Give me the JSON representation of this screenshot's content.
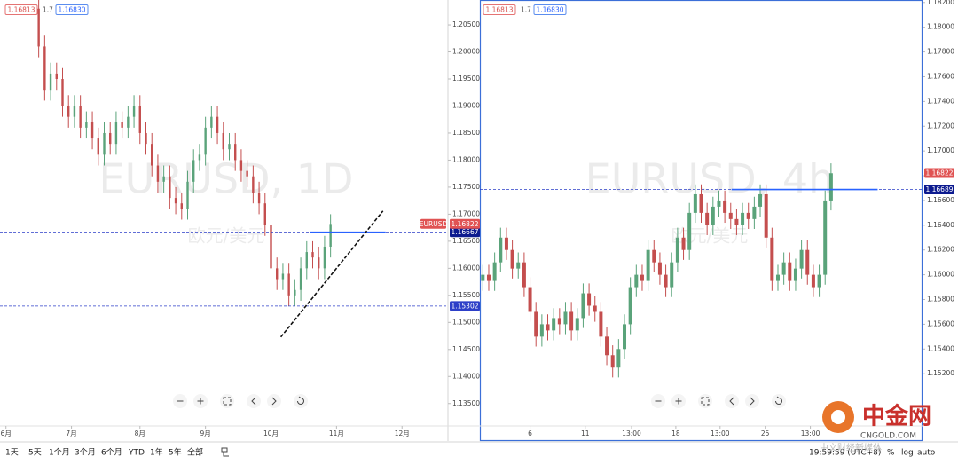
{
  "chart_data": [
    {
      "type": "candlestick",
      "watermark": "EURUSD, 1D",
      "watermark_subtitle": "欧元/美元",
      "symbol_label": "EURUSD",
      "header_values": [
        "1.16813",
        "1.7",
        "1.16830"
      ],
      "up_color": "#5aa37a",
      "down_color": "#c44e4e",
      "xlim": [
        0,
        140
      ],
      "ylim": [
        1.1325,
        1.2096
      ],
      "xticks": [
        {
          "value": 2,
          "label": "6月"
        },
        {
          "value": 24,
          "label": "7月"
        },
        {
          "value": 47,
          "label": "8月"
        },
        {
          "value": 69,
          "label": "9月"
        },
        {
          "value": 91,
          "label": "10月"
        },
        {
          "value": 113,
          "label": "11月"
        },
        {
          "value": 135,
          "label": "12月"
        }
      ],
      "yticks": [
        {
          "value": 1.135,
          "label": "1.13500"
        },
        {
          "value": 1.14,
          "label": "1.14000"
        },
        {
          "value": 1.145,
          "label": "1.14500"
        },
        {
          "value": 1.15,
          "label": "1.15000"
        },
        {
          "value": 1.155,
          "label": "1.15500"
        },
        {
          "value": 1.16,
          "label": "1.16000"
        },
        {
          "value": 1.165,
          "label": "1.16500"
        },
        {
          "value": 1.17,
          "label": "1.17000"
        },
        {
          "value": 1.175,
          "label": "1.17500"
        },
        {
          "value": 1.18,
          "label": "1.18000"
        },
        {
          "value": 1.185,
          "label": "1.18500"
        },
        {
          "value": 1.19,
          "label": "1.19000"
        },
        {
          "value": 1.195,
          "label": "1.19500"
        },
        {
          "value": 1.2,
          "label": "1.20000"
        },
        {
          "value": 1.205,
          "label": "1.20500"
        }
      ],
      "x": [
        13,
        15,
        17,
        19,
        21,
        23,
        25,
        27,
        29,
        31,
        33,
        35,
        37,
        39,
        41,
        43,
        45,
        47,
        49,
        51,
        53,
        55,
        57,
        59,
        61,
        63,
        65,
        67,
        69,
        71,
        73,
        75,
        77,
        79,
        81,
        83,
        85,
        87,
        89,
        91,
        93,
        95,
        97,
        99,
        101,
        103,
        105,
        107,
        109,
        111
      ],
      "open": [
        1.208,
        1.201,
        1.193,
        1.196,
        1.195,
        1.19,
        1.188,
        1.19,
        1.186,
        1.187,
        1.184,
        1.181,
        1.185,
        1.183,
        1.187,
        1.186,
        1.188,
        1.19,
        1.185,
        1.183,
        1.179,
        1.176,
        1.177,
        1.173,
        1.172,
        1.171,
        1.176,
        1.18,
        1.181,
        1.186,
        1.188,
        1.185,
        1.182,
        1.183,
        1.18,
        1.178,
        1.177,
        1.174,
        1.172,
        1.168,
        1.16,
        1.158,
        1.159,
        1.155,
        1.156,
        1.16,
        1.163,
        1.162,
        1.16,
        1.164
      ],
      "high": [
        1.21,
        1.203,
        1.198,
        1.198,
        1.197,
        1.192,
        1.192,
        1.192,
        1.189,
        1.189,
        1.186,
        1.187,
        1.187,
        1.189,
        1.189,
        1.19,
        1.192,
        1.192,
        1.187,
        1.185,
        1.181,
        1.179,
        1.179,
        1.175,
        1.174,
        1.178,
        1.182,
        1.183,
        1.188,
        1.19,
        1.19,
        1.187,
        1.185,
        1.185,
        1.182,
        1.18,
        1.179,
        1.176,
        1.174,
        1.17,
        1.162,
        1.161,
        1.161,
        1.158,
        1.162,
        1.165,
        1.165,
        1.164,
        1.166,
        1.17
      ],
      "low": [
        1.199,
        1.191,
        1.191,
        1.193,
        1.188,
        1.186,
        1.186,
        1.184,
        1.184,
        1.182,
        1.179,
        1.179,
        1.181,
        1.181,
        1.184,
        1.184,
        1.186,
        1.183,
        1.181,
        1.177,
        1.174,
        1.174,
        1.171,
        1.17,
        1.169,
        1.169,
        1.174,
        1.178,
        1.179,
        1.184,
        1.183,
        1.18,
        1.18,
        1.178,
        1.176,
        1.175,
        1.172,
        1.17,
        1.166,
        1.158,
        1.156,
        1.156,
        1.153,
        1.153,
        1.154,
        1.158,
        1.16,
        1.158,
        1.158,
        1.162
      ],
      "close": [
        1.201,
        1.193,
        1.196,
        1.195,
        1.19,
        1.188,
        1.19,
        1.186,
        1.187,
        1.184,
        1.181,
        1.185,
        1.183,
        1.187,
        1.186,
        1.188,
        1.19,
        1.185,
        1.183,
        1.179,
        1.176,
        1.177,
        1.173,
        1.172,
        1.171,
        1.176,
        1.18,
        1.181,
        1.186,
        1.188,
        1.185,
        1.182,
        1.183,
        1.18,
        1.178,
        1.177,
        1.174,
        1.172,
        1.168,
        1.16,
        1.158,
        1.159,
        1.155,
        1.156,
        1.16,
        1.163,
        1.162,
        1.16,
        1.164,
        1.1682
      ],
      "last_price": {
        "value": 1.16822,
        "label": "1.16822"
      },
      "levels": [
        {
          "value": 1.16667,
          "label": "1.16667",
          "segment": [
            104.2,
            129.5
          ]
        },
        {
          "value": 1.15302,
          "label": "1.15302"
        }
      ],
      "trendline": {
        "x": [
          94.3,
          128.6
        ],
        "y": [
          1.1473,
          1.1706
        ]
      }
    },
    {
      "type": "candlestick",
      "watermark": "EURUSD, 4h",
      "watermark_subtitle": "欧元/美元",
      "header_values": [
        "1.16813",
        "1.7",
        "1.16830"
      ],
      "up_color": "#5aa37a",
      "down_color": "#c44e4e",
      "xlim": [
        0,
        150
      ],
      "ylim": [
        1.1485,
        1.1822
      ],
      "xticks": [
        {
          "value": 17,
          "label": "6"
        },
        {
          "value": 35.7,
          "label": "11"
        },
        {
          "value": 51.4,
          "label": "13:00"
        },
        {
          "value": 66.4,
          "label": "18"
        },
        {
          "value": 81.4,
          "label": "13:00"
        },
        {
          "value": 96.7,
          "label": "25"
        },
        {
          "value": 112,
          "label": "13:00"
        }
      ],
      "yticks": [
        {
          "value": 1.152,
          "label": "1.15200"
        },
        {
          "value": 1.154,
          "label": "1.15400"
        },
        {
          "value": 1.156,
          "label": "1.15600"
        },
        {
          "value": 1.158,
          "label": "1.15800"
        },
        {
          "value": 1.16,
          "label": "1.16000"
        },
        {
          "value": 1.162,
          "label": "1.16200"
        },
        {
          "value": 1.164,
          "label": "1.16400"
        },
        {
          "value": 1.166,
          "label": "1.16600"
        },
        {
          "value": 1.168,
          "label": "1.16800"
        },
        {
          "value": 1.17,
          "label": "1.17000"
        },
        {
          "value": 1.172,
          "label": "1.17200"
        },
        {
          "value": 1.174,
          "label": "1.17400"
        },
        {
          "value": 1.176,
          "label": "1.17600"
        },
        {
          "value": 1.178,
          "label": "1.17800"
        },
        {
          "value": 1.18,
          "label": "1.18000"
        },
        {
          "value": 1.182,
          "label": "1.18200"
        }
      ],
      "x": [
        1,
        3,
        5,
        7,
        9,
        11,
        13,
        15,
        17,
        19,
        21,
        23,
        25,
        27,
        29,
        31,
        33,
        35,
        37,
        39,
        41,
        43,
        45,
        47,
        49,
        51,
        53,
        55,
        57,
        59,
        61,
        63,
        65,
        67,
        69,
        71,
        73,
        75,
        77,
        79,
        81,
        83,
        85,
        87,
        89,
        91,
        93,
        95,
        97,
        99,
        101,
        103,
        105,
        107,
        109,
        111,
        113,
        115,
        117,
        119
      ],
      "open": [
        1.1595,
        1.16,
        1.1595,
        1.161,
        1.163,
        1.162,
        1.1605,
        1.161,
        1.159,
        1.157,
        1.155,
        1.156,
        1.1555,
        1.1565,
        1.156,
        1.157,
        1.1555,
        1.1565,
        1.1585,
        1.1575,
        1.157,
        1.155,
        1.1535,
        1.1525,
        1.154,
        1.156,
        1.159,
        1.16,
        1.1595,
        1.162,
        1.161,
        1.16,
        1.159,
        1.161,
        1.163,
        1.162,
        1.165,
        1.1665,
        1.165,
        1.164,
        1.1655,
        1.166,
        1.165,
        1.1645,
        1.164,
        1.165,
        1.1645,
        1.1655,
        1.1665,
        1.163,
        1.1595,
        1.16,
        1.161,
        1.1595,
        1.1605,
        1.162,
        1.16,
        1.159,
        1.16,
        1.166
      ],
      "high": [
        1.1608,
        1.1608,
        1.1618,
        1.1638,
        1.1638,
        1.1628,
        1.1618,
        1.1618,
        1.1598,
        1.1578,
        1.1568,
        1.1568,
        1.1573,
        1.1573,
        1.1578,
        1.1578,
        1.1573,
        1.1593,
        1.1593,
        1.1583,
        1.1578,
        1.1558,
        1.1543,
        1.1548,
        1.1568,
        1.1598,
        1.1608,
        1.1608,
        1.1628,
        1.1628,
        1.1618,
        1.1608,
        1.1618,
        1.1638,
        1.1638,
        1.1658,
        1.1673,
        1.1673,
        1.1658,
        1.1663,
        1.1668,
        1.1668,
        1.1658,
        1.1653,
        1.1658,
        1.1658,
        1.1663,
        1.1673,
        1.1673,
        1.1638,
        1.1608,
        1.1618,
        1.1618,
        1.1613,
        1.1628,
        1.1628,
        1.1608,
        1.1608,
        1.1668,
        1.169
      ],
      "low": [
        1.1587,
        1.1587,
        1.1587,
        1.1602,
        1.1612,
        1.1597,
        1.1597,
        1.1582,
        1.1562,
        1.1542,
        1.1542,
        1.1547,
        1.1547,
        1.1552,
        1.1552,
        1.1547,
        1.1547,
        1.1557,
        1.1567,
        1.1562,
        1.1542,
        1.1527,
        1.1517,
        1.1517,
        1.1532,
        1.1552,
        1.1582,
        1.1587,
        1.1587,
        1.1602,
        1.1592,
        1.1582,
        1.1582,
        1.1602,
        1.1612,
        1.1612,
        1.1642,
        1.1642,
        1.1632,
        1.1632,
        1.1647,
        1.1642,
        1.1637,
        1.1632,
        1.1632,
        1.1637,
        1.1637,
        1.1647,
        1.1622,
        1.1587,
        1.1587,
        1.1592,
        1.1587,
        1.1587,
        1.1597,
        1.1592,
        1.1582,
        1.1582,
        1.1592,
        1.1652
      ],
      "close": [
        1.16,
        1.1595,
        1.161,
        1.163,
        1.162,
        1.1605,
        1.161,
        1.159,
        1.157,
        1.155,
        1.156,
        1.1555,
        1.1565,
        1.156,
        1.157,
        1.1555,
        1.1565,
        1.1585,
        1.1575,
        1.157,
        1.155,
        1.1535,
        1.1525,
        1.154,
        1.156,
        1.159,
        1.16,
        1.1595,
        1.162,
        1.161,
        1.16,
        1.159,
        1.161,
        1.163,
        1.162,
        1.165,
        1.1665,
        1.165,
        1.164,
        1.1655,
        1.166,
        1.165,
        1.1645,
        1.164,
        1.165,
        1.1645,
        1.1655,
        1.1665,
        1.163,
        1.1595,
        1.16,
        1.161,
        1.1595,
        1.1605,
        1.162,
        1.16,
        1.159,
        1.16,
        1.166,
        1.1682
      ],
      "last_price": {
        "value": 1.16822,
        "label": "1.16822"
      },
      "levels": [
        {
          "value": 1.16689,
          "label": "1.16689",
          "segment": [
            85.3,
            134.8
          ]
        }
      ]
    }
  ],
  "toolbar": {
    "ranges": [
      "1天",
      "5天",
      "1个月",
      "3个月",
      "6个月",
      "YTD",
      "1年",
      "5年",
      "全部"
    ],
    "time": "19:59:59 (UTC+8)",
    "options": [
      "%",
      "log",
      "auto"
    ]
  },
  "logo": {
    "name": "中金网",
    "site": "CNGOLD.COM",
    "tagline": "中文财经新媒体"
  }
}
